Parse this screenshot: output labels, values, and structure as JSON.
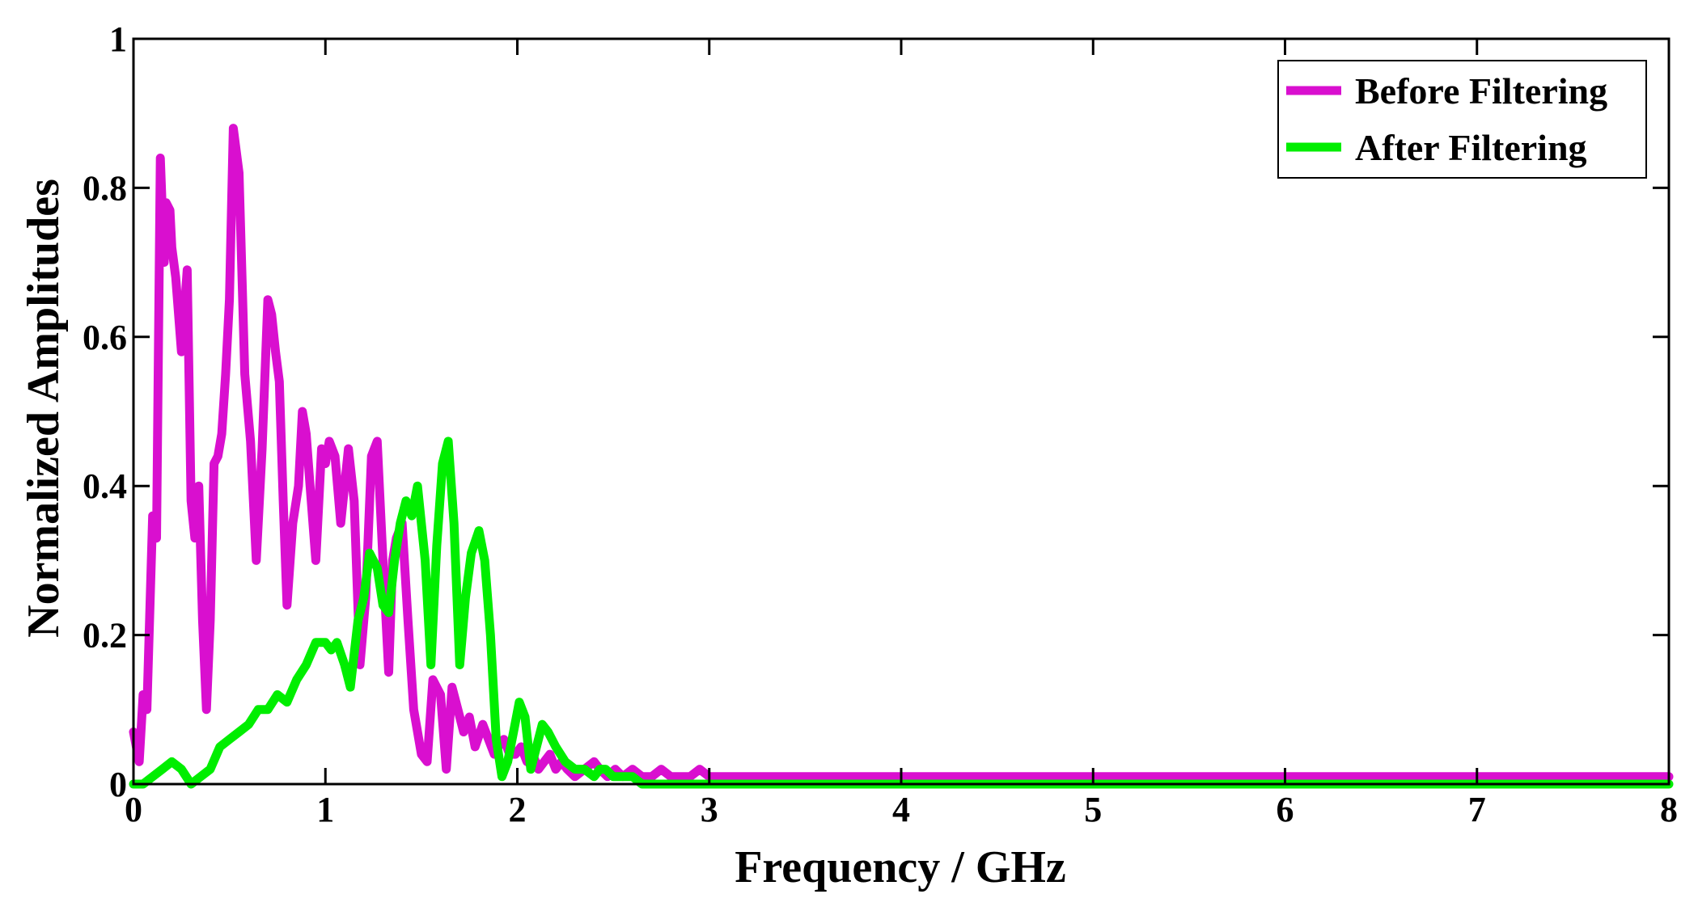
{
  "chart_data": {
    "type": "line",
    "title": "",
    "xlabel": "Frequency / GHz",
    "ylabel": "Normalized Amplitudes",
    "xlim": [
      0,
      8
    ],
    "ylim": [
      0,
      1
    ],
    "xticks": [
      0,
      1,
      2,
      3,
      4,
      5,
      6,
      7,
      8
    ],
    "yticks": [
      0,
      0.2,
      0.4,
      0.6,
      0.8,
      1
    ],
    "xtick_labels": [
      "0",
      "1",
      "2",
      "3",
      "4",
      "5",
      "6",
      "7",
      "8"
    ],
    "ytick_labels": [
      "0",
      "0.2",
      "0.4",
      "0.6",
      "0.8",
      "1"
    ],
    "grid": false,
    "legend_position": "top-right",
    "series": [
      {
        "name": "Before Filtering",
        "color": "#d90fcf",
        "x": [
          0,
          0.03,
          0.05,
          0.07,
          0.1,
          0.12,
          0.14,
          0.16,
          0.17,
          0.19,
          0.2,
          0.22,
          0.25,
          0.28,
          0.3,
          0.32,
          0.34,
          0.36,
          0.38,
          0.4,
          0.42,
          0.44,
          0.46,
          0.48,
          0.5,
          0.52,
          0.55,
          0.58,
          0.61,
          0.64,
          0.67,
          0.7,
          0.72,
          0.74,
          0.76,
          0.78,
          0.8,
          0.83,
          0.86,
          0.88,
          0.9,
          0.92,
          0.95,
          0.98,
          1.0,
          1.02,
          1.05,
          1.08,
          1.12,
          1.15,
          1.18,
          1.21,
          1.24,
          1.27,
          1.3,
          1.33,
          1.35,
          1.37,
          1.4,
          1.43,
          1.46,
          1.5,
          1.53,
          1.56,
          1.6,
          1.63,
          1.66,
          1.69,
          1.72,
          1.75,
          1.78,
          1.82,
          1.85,
          1.88,
          1.9,
          1.93,
          1.96,
          1.99,
          2.02,
          2.05,
          2.08,
          2.11,
          2.14,
          2.17,
          2.2,
          2.23,
          2.26,
          2.3,
          2.35,
          2.4,
          2.43,
          2.47,
          2.51,
          2.55,
          2.6,
          2.65,
          2.7,
          2.75,
          2.8,
          2.85,
          2.9,
          2.95,
          3.0,
          3.05,
          3.1,
          3.15,
          3.2,
          3.25,
          3.3,
          3.35,
          3.4,
          3.45,
          3.5,
          3.55,
          3.6,
          3.65,
          3.7,
          3.75,
          3.8,
          3.85,
          3.9,
          3.95,
          4.0,
          4.05,
          4.1,
          4.15,
          4.2,
          4.25,
          4.3,
          4.35,
          4.4,
          4.45,
          4.5,
          4.55,
          4.6,
          4.65,
          4.7,
          4.75,
          4.8,
          4.85,
          4.9,
          4.95,
          5.0,
          5.05,
          5.1,
          5.15,
          5.2,
          5.25,
          5.3,
          5.35,
          5.4,
          5.45,
          5.5,
          5.55,
          5.6,
          5.65,
          5.7,
          5.75,
          5.8,
          5.85,
          5.9,
          5.95,
          6.0,
          6.05,
          6.1,
          6.15,
          6.2,
          6.25,
          6.3,
          6.35,
          6.4,
          6.45,
          6.5,
          6.55,
          6.6,
          6.65,
          6.7,
          6.75,
          6.8,
          6.85,
          6.9,
          6.95,
          7.0,
          7.05,
          7.1,
          7.15,
          7.2,
          7.25,
          7.3,
          7.35,
          7.4,
          7.45,
          7.5,
          7.55,
          7.6,
          7.65,
          7.7,
          7.75,
          7.8,
          7.85,
          7.9,
          7.95,
          8.0
        ],
        "values": [
          0.07,
          0.03,
          0.12,
          0.1,
          0.36,
          0.33,
          0.84,
          0.7,
          0.78,
          0.77,
          0.72,
          0.68,
          0.58,
          0.69,
          0.38,
          0.33,
          0.4,
          0.22,
          0.1,
          0.22,
          0.43,
          0.44,
          0.47,
          0.55,
          0.65,
          0.88,
          0.82,
          0.55,
          0.46,
          0.3,
          0.45,
          0.65,
          0.63,
          0.58,
          0.54,
          0.38,
          0.24,
          0.35,
          0.4,
          0.5,
          0.47,
          0.4,
          0.3,
          0.45,
          0.43,
          0.46,
          0.44,
          0.35,
          0.45,
          0.38,
          0.16,
          0.25,
          0.44,
          0.46,
          0.3,
          0.15,
          0.3,
          0.33,
          0.35,
          0.22,
          0.1,
          0.04,
          0.03,
          0.14,
          0.12,
          0.02,
          0.13,
          0.1,
          0.07,
          0.09,
          0.05,
          0.08,
          0.06,
          0.04,
          0.05,
          0.06,
          0.04,
          0.04,
          0.05,
          0.03,
          0.04,
          0.02,
          0.03,
          0.04,
          0.02,
          0.03,
          0.02,
          0.01,
          0.02,
          0.03,
          0.02,
          0.01,
          0.02,
          0.01,
          0.02,
          0.01,
          0.01,
          0.02,
          0.01,
          0.01,
          0.01,
          0.02,
          0.01,
          0.01,
          0.01,
          0.01,
          0.01,
          0.01,
          0.01,
          0.01,
          0.01,
          0.01,
          0.01,
          0.01,
          0.01,
          0.01,
          0.01,
          0.01,
          0.01,
          0.01,
          0.01,
          0.01,
          0.01,
          0.01,
          0.01,
          0.01,
          0.01,
          0.01,
          0.01,
          0.01,
          0.01,
          0.01,
          0.01,
          0.01,
          0.01,
          0.01,
          0.01,
          0.01,
          0.01,
          0.01,
          0.01,
          0.01,
          0.01,
          0.01,
          0.01,
          0.01,
          0.01,
          0.01,
          0.01,
          0.01,
          0.01,
          0.01,
          0.01,
          0.01,
          0.01,
          0.01,
          0.01,
          0.01,
          0.01,
          0.01,
          0.01,
          0.01,
          0.01,
          0.01,
          0.01,
          0.01,
          0.01,
          0.01,
          0.01,
          0.01,
          0.01,
          0.01,
          0.01,
          0.01,
          0.01,
          0.01,
          0.01,
          0.01,
          0.01,
          0.01,
          0.01,
          0.01,
          0.01,
          0.01,
          0.01,
          0.01,
          0.01,
          0.01,
          0.01,
          0.01,
          0.01,
          0.01,
          0.01,
          0.01,
          0.01,
          0.01,
          0.01,
          0.01,
          0.01,
          0.01,
          0.01,
          0.01,
          0.01
        ]
      },
      {
        "name": "After Filtering",
        "color": "#00ee00",
        "x": [
          0,
          0.05,
          0.1,
          0.15,
          0.2,
          0.25,
          0.3,
          0.35,
          0.4,
          0.45,
          0.5,
          0.55,
          0.6,
          0.65,
          0.7,
          0.75,
          0.8,
          0.85,
          0.9,
          0.95,
          1.0,
          1.03,
          1.06,
          1.1,
          1.13,
          1.17,
          1.2,
          1.23,
          1.27,
          1.3,
          1.33,
          1.36,
          1.39,
          1.42,
          1.45,
          1.48,
          1.52,
          1.55,
          1.58,
          1.61,
          1.64,
          1.67,
          1.7,
          1.73,
          1.76,
          1.8,
          1.83,
          1.86,
          1.89,
          1.92,
          1.95,
          1.98,
          2.01,
          2.04,
          2.07,
          2.1,
          2.13,
          2.16,
          2.2,
          2.25,
          2.3,
          2.35,
          2.4,
          2.43,
          2.46,
          2.5,
          2.55,
          2.6,
          2.65,
          2.7,
          2.75,
          2.8,
          2.85,
          2.9,
          2.95,
          3.0,
          3.05,
          3.1,
          3.15,
          3.2,
          3.25,
          3.3,
          3.35,
          3.4,
          3.45,
          3.5,
          4.0,
          5.0,
          6.0,
          7.0,
          8.0
        ],
        "values": [
          0.0,
          0.0,
          0.01,
          0.02,
          0.03,
          0.02,
          0.0,
          0.01,
          0.02,
          0.05,
          0.06,
          0.07,
          0.08,
          0.1,
          0.1,
          0.12,
          0.11,
          0.14,
          0.16,
          0.19,
          0.19,
          0.18,
          0.19,
          0.16,
          0.13,
          0.22,
          0.25,
          0.31,
          0.29,
          0.24,
          0.23,
          0.3,
          0.35,
          0.38,
          0.36,
          0.4,
          0.3,
          0.16,
          0.32,
          0.43,
          0.46,
          0.35,
          0.16,
          0.25,
          0.31,
          0.34,
          0.3,
          0.2,
          0.06,
          0.01,
          0.03,
          0.07,
          0.11,
          0.09,
          0.02,
          0.05,
          0.08,
          0.07,
          0.05,
          0.03,
          0.02,
          0.02,
          0.01,
          0.02,
          0.02,
          0.01,
          0.01,
          0.01,
          0.0,
          0.0,
          0.0,
          0.0,
          0.0,
          0.0,
          0.0,
          0.0,
          0.0,
          0.0,
          0.0,
          0.0,
          0.0,
          0.0,
          0.0,
          0.0,
          0.0,
          0.0,
          0.0,
          0.0,
          0.0,
          0.0,
          0.0
        ]
      }
    ]
  }
}
